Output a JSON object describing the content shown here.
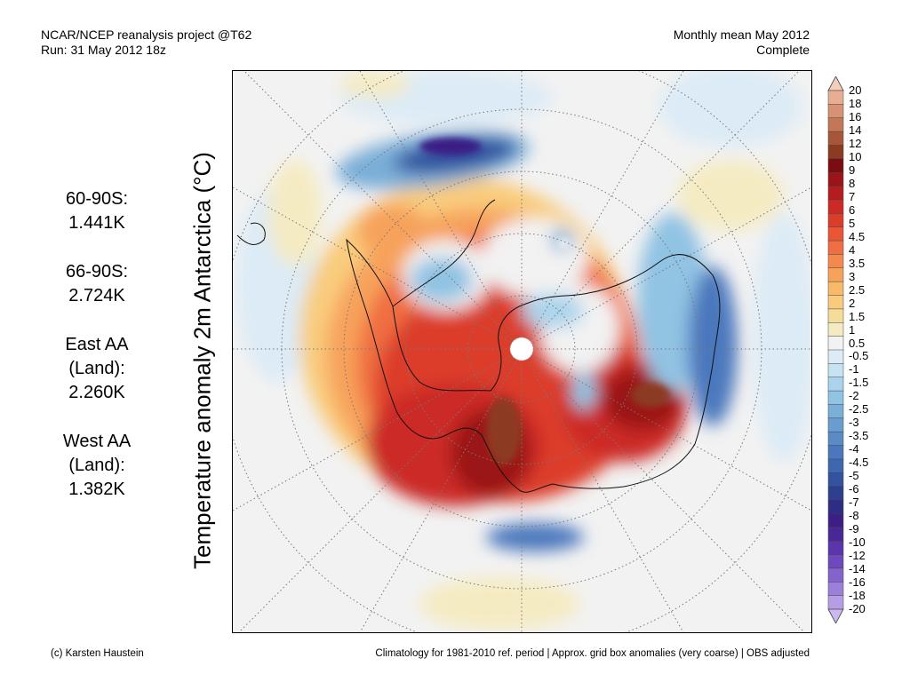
{
  "header": {
    "left_line1": "NCAR/NCEP reanalysis project @T62",
    "left_line2": "Run: 31 May 2012 18z",
    "right_line1": "Monthly mean May 2012",
    "right_line2": "Complete"
  },
  "stats": [
    {
      "label_lines": [
        "60-90S:"
      ],
      "value": "1.441K"
    },
    {
      "label_lines": [
        "66-90S:"
      ],
      "value": "2.724K"
    },
    {
      "label_lines": [
        "East AA",
        "(Land):"
      ],
      "value": "2.260K"
    },
    {
      "label_lines": [
        "West AA",
        "(Land):"
      ],
      "value": "1.382K"
    }
  ],
  "y_axis_label": "Temperature anomaly 2m Antarctica (°C)",
  "colorbar": {
    "labels": [
      "20",
      "18",
      "16",
      "14",
      "12",
      "10",
      "9",
      "8",
      "7",
      "6",
      "5",
      "4.5",
      "4",
      "3.5",
      "3",
      "2.5",
      "2",
      "1.5",
      "1",
      "0.5",
      "-0.5",
      "-1",
      "-1.5",
      "-2",
      "-2.5",
      "-3",
      "-3.5",
      "-4",
      "-4.5",
      "-5",
      "-6",
      "-7",
      "-8",
      "-9",
      "-10",
      "-12",
      "-14",
      "-16",
      "-18",
      "-20"
    ],
    "colors": [
      "#f6cdb8",
      "#e8ae93",
      "#d69274",
      "#c27757",
      "#a8563a",
      "#8c3a22",
      "#7a0c12",
      "#9b1419",
      "#b41d1f",
      "#cc2b25",
      "#dc3d2b",
      "#e85636",
      "#ef6e43",
      "#f4894f",
      "#f7a25b",
      "#f9b96a",
      "#f9cc7d",
      "#f5dc98",
      "#f5ebc2",
      "#f2f2f2",
      "#dcebf6",
      "#c6e3f3",
      "#abd4ec",
      "#91c3e3",
      "#7aafd8",
      "#6a9dcf",
      "#5a8bc6",
      "#4b78bd",
      "#3f66b1",
      "#33529f",
      "#2d3f8f",
      "#2e2d85",
      "#3b1f86",
      "#4a2797",
      "#5b35ab",
      "#6e48bd",
      "#8463cc",
      "#9b80da",
      "#b59ee6",
      "#cbb8f0"
    ]
  },
  "footer": {
    "left": "(c) Karsten Haustein",
    "right": "Climatology for 1981-2010 ref. period | Approx. grid box anomalies (very coarse) | OBS adjusted"
  }
}
